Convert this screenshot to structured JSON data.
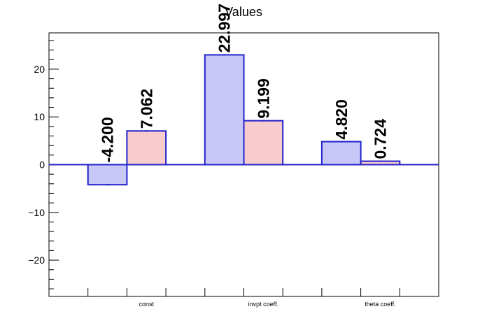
{
  "chart_data": {
    "type": "bar",
    "title": "Values",
    "categories": [
      "const",
      "invpt coeff.",
      "theta coeff."
    ],
    "series": [
      {
        "values": [
          -4.2,
          22.997,
          4.82
        ],
        "labels": [
          "-4.200",
          "22.997",
          "4.820"
        ],
        "fill": "#c8c8f8",
        "stroke": "#2222cc"
      },
      {
        "values": [
          7.062,
          9.199,
          0.724
        ],
        "labels": [
          "7.062",
          "9.199",
          "0.724"
        ],
        "fill": "#f8cccc",
        "stroke": "#2222cc"
      }
    ],
    "ylim": [
      -27.6,
      27.6
    ],
    "yticks": [
      -20,
      -10,
      0,
      10,
      20
    ],
    "ytick_labels": [
      "−20",
      "−10",
      "0",
      "10",
      "20"
    ],
    "grid": false,
    "xlabel": "",
    "ylabel": ""
  }
}
